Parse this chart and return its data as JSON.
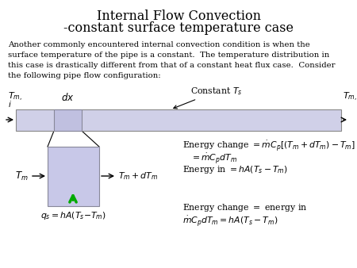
{
  "title_line1": "Internal Flow Convection",
  "title_line2": "-constant surface temperature case",
  "body_text": "Another commonly encountered internal convection condition is when the\nsurface temperature of the pipe is a constant.  The temperature distribution in\nthis case is drastically different from that of a constant heat flux case.  Consider\nthe following pipe flow configuration:",
  "bg_color": "#ffffff",
  "pipe_color": "#d0d0e8",
  "dx_color": "#c0c0e0",
  "small_box_color": "#c8c8e8"
}
